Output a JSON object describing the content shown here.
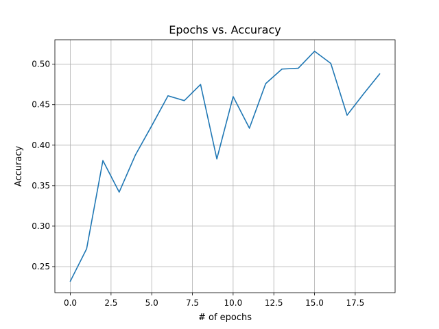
{
  "chart_data": {
    "type": "line",
    "title": "Epochs vs. Accuracy",
    "xlabel": "# of epochs",
    "ylabel": "Accuracy",
    "xlim": [
      -0.95,
      19.95
    ],
    "ylim": [
      0.2178,
      0.5302
    ],
    "grid": true,
    "xticks": [
      0.0,
      2.5,
      5.0,
      7.5,
      10.0,
      12.5,
      15.0,
      17.5
    ],
    "xtick_labels": [
      "0.0",
      "2.5",
      "5.0",
      "7.5",
      "10.0",
      "12.5",
      "15.0",
      "17.5"
    ],
    "yticks": [
      0.25,
      0.3,
      0.35,
      0.4,
      0.45,
      0.5
    ],
    "ytick_labels": [
      "0.25",
      "0.30",
      "0.35",
      "0.40",
      "0.45",
      "0.50"
    ],
    "series": [
      {
        "color": "#1f77b4",
        "x": [
          0,
          1,
          2,
          3,
          4,
          5,
          6,
          7,
          8,
          9,
          10,
          11,
          12,
          13,
          14,
          15,
          16,
          17,
          18,
          19
        ],
        "y": [
          0.232,
          0.272,
          0.381,
          0.342,
          0.388,
          0.424,
          0.461,
          0.455,
          0.475,
          0.383,
          0.46,
          0.421,
          0.476,
          0.494,
          0.495,
          0.516,
          0.501,
          0.437,
          0.463,
          0.488
        ]
      }
    ]
  }
}
